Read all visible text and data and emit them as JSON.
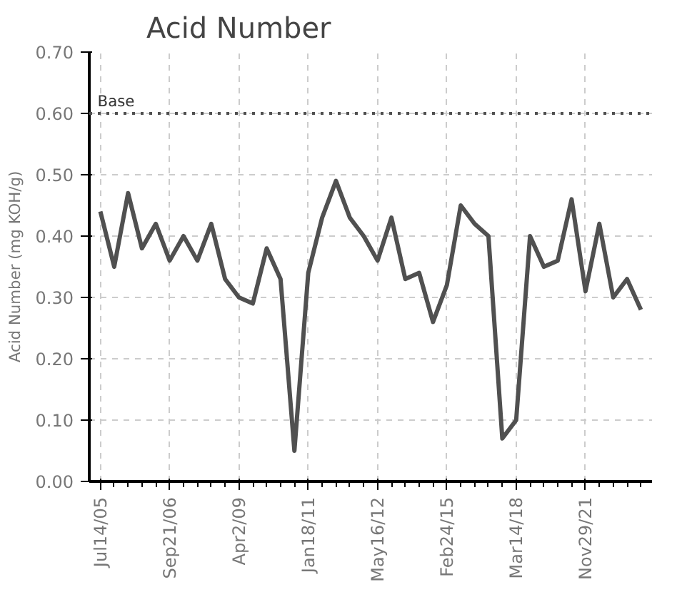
{
  "chart_data": {
    "type": "line",
    "title": "Acid Number",
    "ylabel": "Acid Number (mg KOH/g)",
    "categories": [
      "Jul14/05",
      null,
      null,
      null,
      null,
      "Sep21/06",
      null,
      null,
      null,
      null,
      "Apr2/09",
      null,
      null,
      null,
      null,
      "Jan18/11",
      null,
      null,
      null,
      null,
      "May16/12",
      null,
      null,
      null,
      null,
      "Feb24/15",
      null,
      null,
      null,
      null,
      "Mar14/18",
      null,
      null,
      null,
      null,
      "Nov29/21",
      null,
      null,
      null,
      null
    ],
    "series": [
      {
        "color": "#505050",
        "values": [
          0.44,
          0.35,
          0.47,
          0.38,
          0.42,
          0.36,
          0.4,
          0.36,
          0.42,
          0.33,
          0.3,
          0.29,
          0.38,
          0.33,
          0.05,
          0.34,
          0.43,
          0.49,
          0.43,
          0.4,
          0.36,
          0.43,
          0.33,
          0.34,
          0.26,
          0.32,
          0.45,
          0.42,
          0.4,
          0.07,
          0.1,
          0.4,
          0.35,
          0.36,
          0.46,
          0.31,
          0.42,
          0.3,
          0.33,
          0.28
        ]
      }
    ],
    "ref_lines": [
      {
        "axis": "y",
        "value": 0.6,
        "label": "Base",
        "color": "#505050",
        "line_style": "dotted"
      }
    ],
    "ylim": [
      0,
      0.7
    ],
    "yticks": [
      {
        "value": 0,
        "label": "0.00"
      },
      {
        "value": 0.1,
        "label": "0.10"
      },
      {
        "value": 0.2,
        "label": "0.20"
      },
      {
        "value": 0.3,
        "label": "0.30"
      },
      {
        "value": 0.4,
        "label": "0.40"
      },
      {
        "value": 0.5,
        "label": "0.50"
      },
      {
        "value": 0.6,
        "label": "0.60"
      },
      {
        "value": 0.7,
        "label": "0.70"
      }
    ],
    "grid": true,
    "line_style": "solid"
  }
}
